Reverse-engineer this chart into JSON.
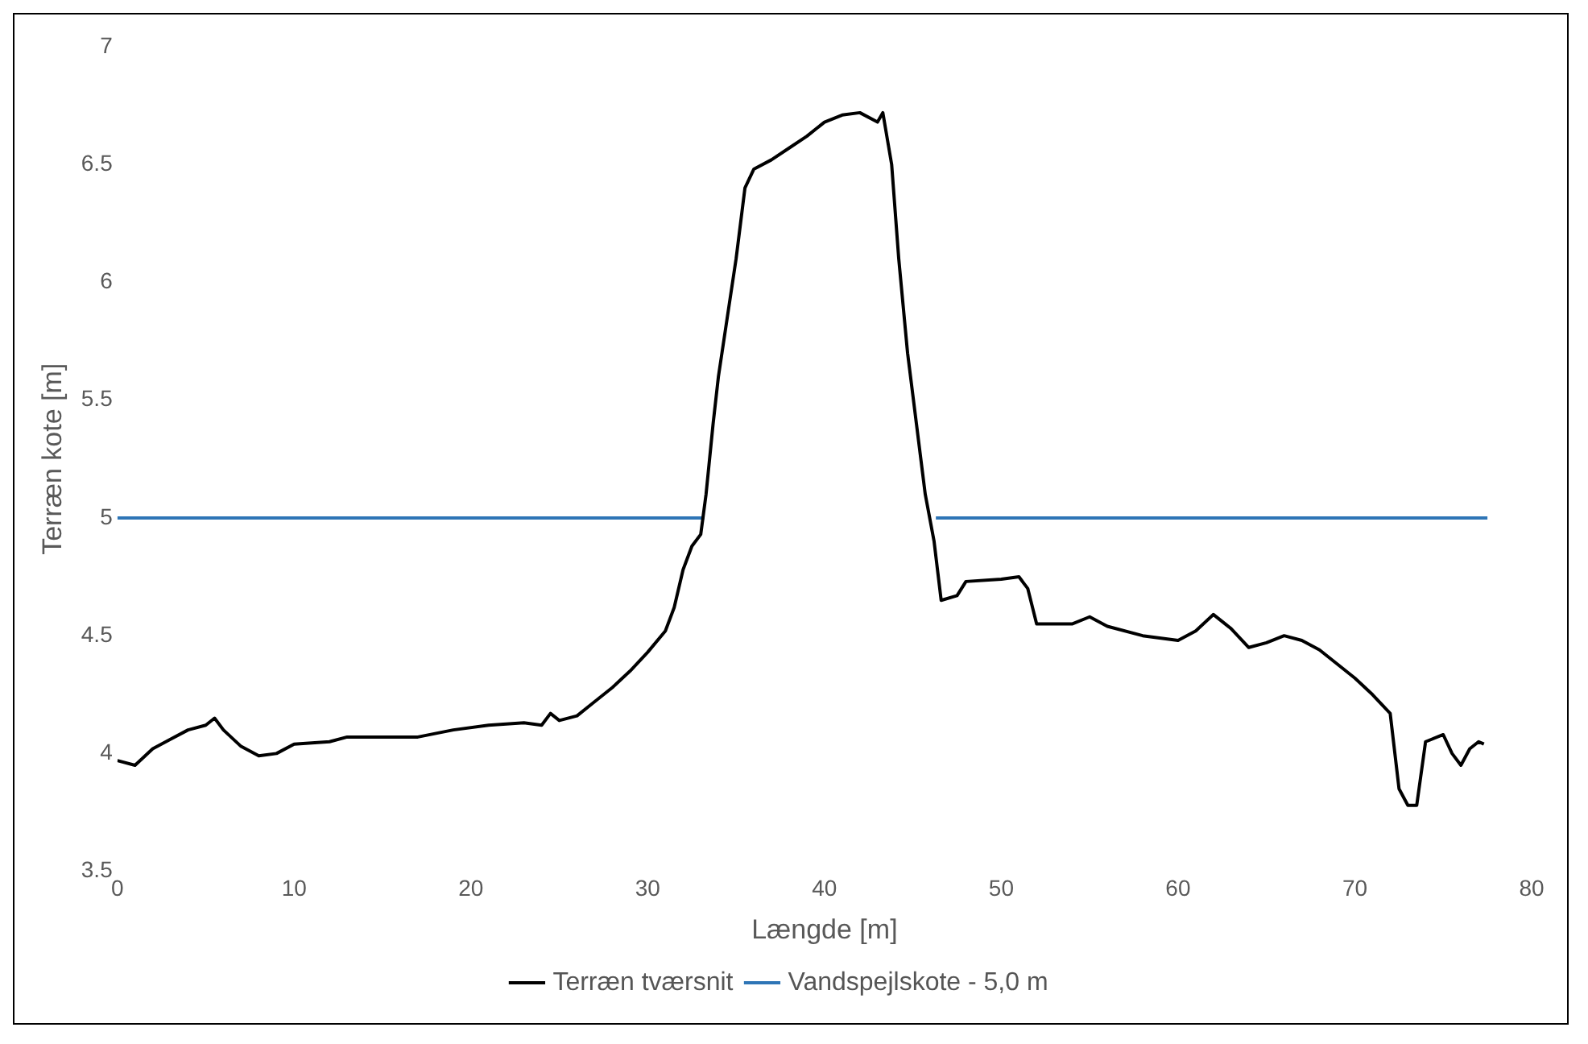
{
  "chart_data": {
    "type": "line",
    "xlabel": "Længde [m]",
    "ylabel": "Terræn kote [m]",
    "xlim": [
      0,
      80
    ],
    "xticks": [
      0,
      10,
      20,
      30,
      40,
      50,
      60,
      70,
      80
    ],
    "ylim": [
      3.5,
      7
    ],
    "yticks": [
      3.5,
      4,
      4.5,
      5,
      5.5,
      6,
      6.5,
      7
    ],
    "grid": false,
    "legend": "bottom",
    "marker": "none",
    "line_style": "solid",
    "series": [
      {
        "name": "Terræn tværsnit",
        "color": "#000000",
        "x": [
          0,
          1,
          2,
          3,
          4,
          5,
          5.5,
          6,
          7,
          8,
          9,
          10,
          12,
          13,
          15,
          17,
          19,
          21,
          23,
          24,
          24.5,
          25,
          26,
          27,
          28,
          29,
          30,
          31,
          31.5,
          32,
          32.5,
          33,
          33.3,
          33.7,
          34,
          34.5,
          35,
          35.5,
          36,
          37,
          38,
          39,
          40,
          41,
          42,
          43,
          43.3,
          43.8,
          44.2,
          44.7,
          45.2,
          45.7,
          46.2,
          46.6,
          47.5,
          48,
          50,
          51,
          51.5,
          52,
          54,
          55,
          56,
          58,
          60,
          61,
          62,
          63,
          64,
          65,
          66,
          67,
          68,
          69,
          70,
          71,
          72,
          72.5,
          73,
          73.5,
          74,
          75,
          75.5,
          76,
          76.5,
          77,
          77.3
        ],
        "values": [
          3.97,
          3.95,
          4.02,
          4.06,
          4.1,
          4.12,
          4.15,
          4.1,
          4.03,
          3.99,
          4.0,
          4.04,
          4.05,
          4.07,
          4.07,
          4.07,
          4.1,
          4.12,
          4.13,
          4.12,
          4.17,
          4.14,
          4.16,
          4.22,
          4.28,
          4.35,
          4.43,
          4.52,
          4.62,
          4.78,
          4.88,
          4.93,
          5.1,
          5.4,
          5.6,
          5.85,
          6.1,
          6.4,
          6.48,
          6.52,
          6.57,
          6.62,
          6.68,
          6.71,
          6.72,
          6.68,
          6.72,
          6.5,
          6.1,
          5.7,
          5.4,
          5.1,
          4.9,
          4.65,
          4.67,
          4.73,
          4.74,
          4.75,
          4.7,
          4.55,
          4.55,
          4.58,
          4.54,
          4.5,
          4.48,
          4.52,
          4.59,
          4.53,
          4.45,
          4.47,
          4.5,
          4.48,
          4.44,
          4.38,
          4.32,
          4.25,
          4.17,
          3.85,
          3.78,
          3.78,
          4.05,
          4.08,
          4.0,
          3.95,
          4.02,
          4.05,
          4.04
        ]
      },
      {
        "name": "Vandspejlskote - 5,0 m",
        "color": "#2e75b6",
        "x": [
          0,
          33.2,
          33.3,
          46.3,
          77.5
        ],
        "values": [
          5,
          5,
          null,
          5,
          5
        ]
      }
    ]
  }
}
